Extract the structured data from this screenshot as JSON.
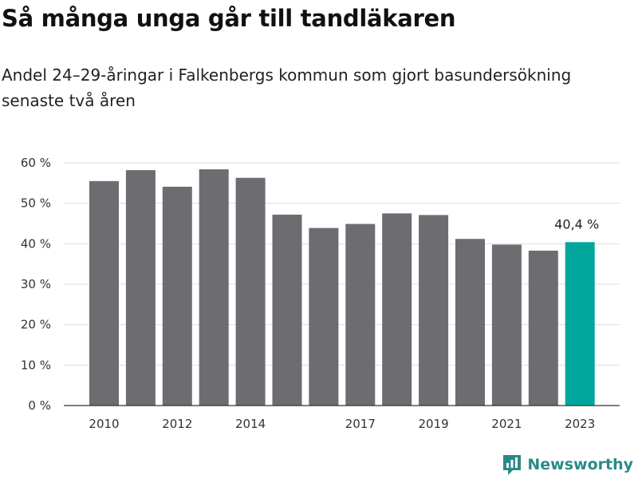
{
  "title": "Så många unga går till tandläkaren",
  "subtitle": "Andel 24–29-åringar i Falkenbergs kommun som gjort basundersökning senaste två åren",
  "brand": "Newsworthy",
  "colors": {
    "bar": "#6d6c71",
    "highlight": "#00a69c",
    "grid": "#dddddd",
    "brand": "#2b8a87"
  },
  "chart_data": {
    "type": "bar",
    "x": [
      2010,
      2011,
      2012,
      2013,
      2014,
      2015,
      2016,
      2017,
      2018,
      2019,
      2020,
      2021,
      2022,
      2023
    ],
    "values": [
      55.5,
      58.2,
      54.1,
      58.4,
      56.3,
      47.2,
      43.9,
      44.9,
      47.5,
      47.1,
      41.2,
      39.8,
      38.3,
      40.4
    ],
    "x_tick_labels": [
      "2010",
      "2012",
      "2014",
      "2017",
      "2019",
      "2021",
      "2023"
    ],
    "y_ticks": [
      0,
      10,
      20,
      30,
      40,
      50,
      60
    ],
    "y_tick_labels": [
      "0 %",
      "10 %",
      "20 %",
      "30 %",
      "40 %",
      "50 %",
      "60 %"
    ],
    "ylim": [
      0,
      60
    ],
    "highlight_index": 13,
    "highlight_label": "40,4 %",
    "grid": true,
    "legend": "none"
  }
}
